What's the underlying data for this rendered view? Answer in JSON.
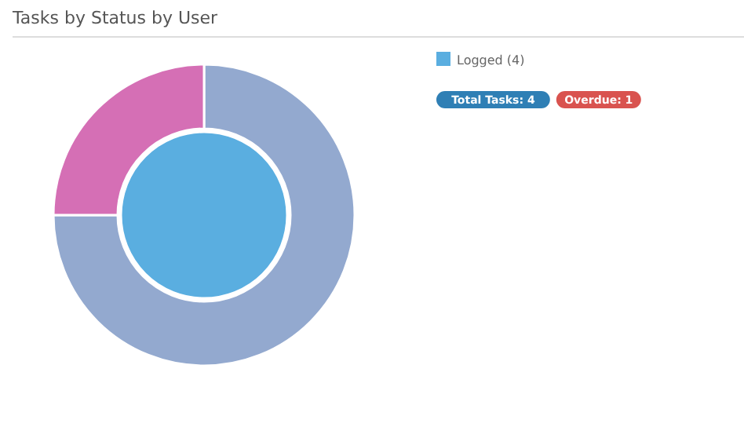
{
  "chart_data": {
    "type": "donut",
    "title": "Tasks by Status by User",
    "legend": "top right",
    "series": [
      {
        "type": "pie",
        "name": "Logged (4)",
        "color": "#5aaee0",
        "values": [
          100
        ]
      },
      {
        "colors": [
          "#93a9cf",
          "#d56fb5"
        ],
        "values": [
          75,
          25
        ]
      }
    ],
    "annotations": [
      "Total Tasks: 4",
      "Overdue: 1"
    ]
  }
}
